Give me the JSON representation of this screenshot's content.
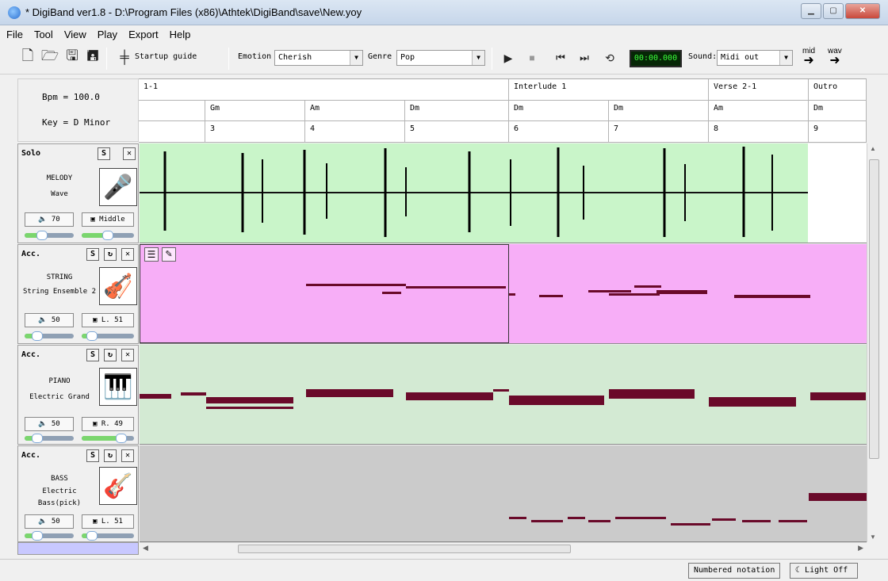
{
  "window": {
    "title": "* DigiBand ver1.8  - D:\\Program Files (x86)\\Athtek\\DigiBand\\save\\New.yoy"
  },
  "menu": [
    "File",
    "Tool",
    "View",
    "Play",
    "Export",
    "Help"
  ],
  "toolbar": {
    "startup_guide": "Startup guide",
    "emotion_label": "Emotion",
    "emotion_value": "Cherish",
    "genre_label": "Genre",
    "genre_value": "Pop",
    "time": "00:00.000",
    "sound_label": "Sound:",
    "sound_value": "Midi out",
    "export_mid": "mid",
    "export_wav": "wav"
  },
  "song_info": {
    "bpm": "Bpm = 100.0",
    "key": "Key =  D  Minor"
  },
  "sections": [
    "1-1",
    "Interlude 1",
    "Verse 2-1",
    "Outro"
  ],
  "chords": [
    "",
    "Gm",
    "Am",
    "Dm",
    "Dm",
    "Dm",
    "Am",
    "Dm"
  ],
  "bars": [
    "",
    "3",
    "4",
    "5",
    "6",
    "7",
    "8",
    "9"
  ],
  "tracks": [
    {
      "type": "Solo",
      "name": "MELODY",
      "instrument": "Wave",
      "volume": "70",
      "pan": "Middle",
      "vol_level": 0.35,
      "pan_level": 0.5
    },
    {
      "type": "Acc.",
      "name": "STRING",
      "instrument": "String Ensemble 2",
      "volume": "50",
      "pan": "L. 51",
      "vol_level": 0.25,
      "pan_level": 0.2
    },
    {
      "type": "Acc.",
      "name": "PIANO",
      "instrument": "Electric Grand",
      "volume": "50",
      "pan": "R. 49",
      "vol_level": 0.25,
      "pan_level": 0.75
    },
    {
      "type": "Acc.",
      "name": "BASS",
      "instrument": "Electric Bass(pick)",
      "volume": "50",
      "pan": "L. 51",
      "vol_level": 0.25,
      "pan_level": 0.2
    }
  ],
  "status": {
    "numbered_notation": "Numbered notation",
    "light": "Light Off"
  },
  "colors": {
    "solo_lane": "#c9f5c9",
    "string_lane": "#f7aef7",
    "piano_lane": "#d3ead3",
    "bass_lane": "#cbcbcb",
    "note": "#6a0a2a"
  },
  "icons": {
    "new": "new-file-icon",
    "open": "open-folder-icon",
    "save": "save-icon",
    "save_as": "save-as-icon",
    "startup": "startup-guide-icon",
    "play": "play-icon",
    "stop": "stop-icon",
    "prev": "skip-back-icon",
    "next": "skip-forward-icon",
    "loop": "loop-icon"
  }
}
